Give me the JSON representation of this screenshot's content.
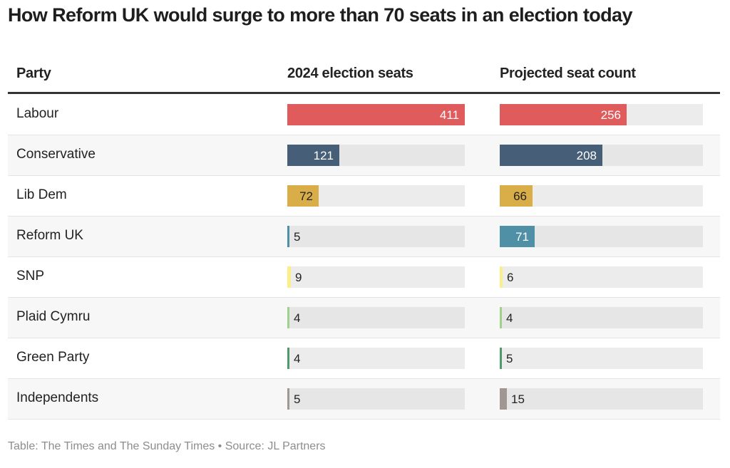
{
  "title": "How Reform UK would surge to more than 70 seats in an election today",
  "source": "Table: The Times and The Sunday Times • Source: JL Partners",
  "chart_data": {
    "type": "table",
    "title": "How Reform UK would surge to more than 70 seats in an election today",
    "columns": [
      "Party",
      "2024 election seats",
      "Projected seat count"
    ],
    "scale_max": 411,
    "rows": [
      {
        "party": "Labour",
        "seats_2024": 411,
        "projected": 256,
        "color": "#e05c5c",
        "label_color": "#ffffff"
      },
      {
        "party": "Conservative",
        "seats_2024": 121,
        "projected": 208,
        "color": "#465e78",
        "label_color": "#ffffff"
      },
      {
        "party": "Lib Dem",
        "seats_2024": 72,
        "projected": 66,
        "color": "#d9ae48",
        "label_color": "#222222"
      },
      {
        "party": "Reform UK",
        "seats_2024": 5,
        "projected": 71,
        "color": "#4f90a6",
        "label_color": "#ffffff"
      },
      {
        "party": "SNP",
        "seats_2024": 9,
        "projected": 6,
        "color": "#fbef8a",
        "label_color": "#222222"
      },
      {
        "party": "Plaid Cymru",
        "seats_2024": 4,
        "projected": 4,
        "color": "#9fd18a",
        "label_color": "#222222"
      },
      {
        "party": "Green Party",
        "seats_2024": 4,
        "projected": 5,
        "color": "#4e9a68",
        "label_color": "#222222"
      },
      {
        "party": "Independents",
        "seats_2024": 5,
        "projected": 15,
        "color": "#a29692",
        "label_color": "#222222"
      }
    ],
    "source": "Table: The Times and The Sunday Times • Source: JL Partners"
  }
}
